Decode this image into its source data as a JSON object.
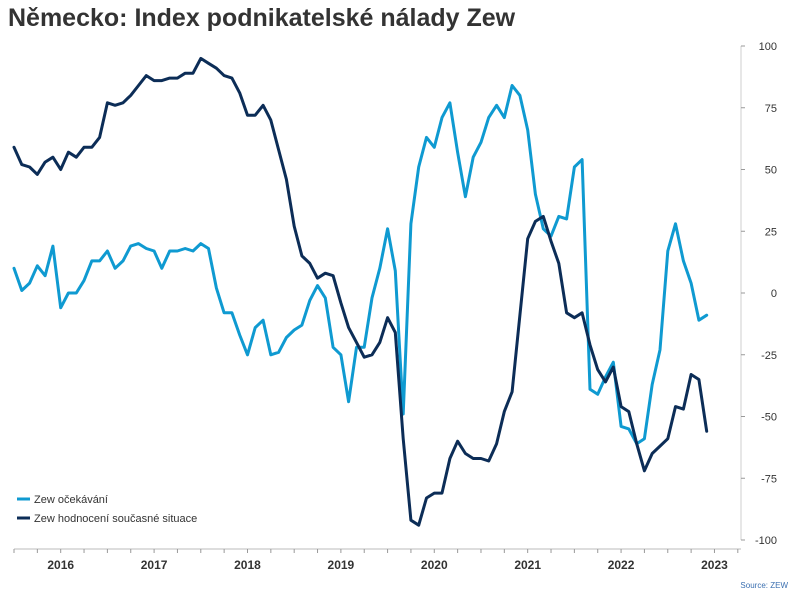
{
  "chart_data": {
    "type": "line",
    "title": "Německo: Index podnikatelské nálady Zew",
    "source": "Source: ZEW",
    "ylim": [
      -100,
      100
    ],
    "y_ticks": [
      -100,
      -75,
      -50,
      -25,
      0,
      25,
      50,
      75,
      100
    ],
    "x_ticks": [
      {
        "label": "2016",
        "x": 2016.0
      },
      {
        "label": "2017",
        "x": 2017.0
      },
      {
        "label": "2018",
        "x": 2018.0
      },
      {
        "label": "2019",
        "x": 2019.0
      },
      {
        "label": "2020",
        "x": 2020.0
      },
      {
        "label": "2021",
        "x": 2021.0
      },
      {
        "label": "2022",
        "x": 2022.0
      },
      {
        "label": "2023",
        "x": 2023.0
      }
    ],
    "grid": false,
    "legend_position": "bottom-left",
    "series": [
      {
        "name": "Zew očekávání",
        "color": "#0f9ad1",
        "points": [
          [
            2015.5,
            10
          ],
          [
            2015.583,
            1
          ],
          [
            2015.667,
            4
          ],
          [
            2015.75,
            11
          ],
          [
            2015.833,
            7
          ],
          [
            2015.917,
            19
          ],
          [
            2016.0,
            -6
          ],
          [
            2016.083,
            0
          ],
          [
            2016.167,
            0
          ],
          [
            2016.25,
            5
          ],
          [
            2016.333,
            13
          ],
          [
            2016.417,
            13
          ],
          [
            2016.5,
            17
          ],
          [
            2016.583,
            10
          ],
          [
            2016.667,
            13
          ],
          [
            2016.75,
            19
          ],
          [
            2016.833,
            20
          ],
          [
            2016.917,
            18
          ],
          [
            2017.0,
            17
          ],
          [
            2017.083,
            10
          ],
          [
            2017.167,
            17
          ],
          [
            2017.25,
            17
          ],
          [
            2017.333,
            18
          ],
          [
            2017.417,
            17
          ],
          [
            2017.5,
            20
          ],
          [
            2017.583,
            18
          ],
          [
            2017.667,
            2
          ],
          [
            2017.75,
            -8
          ],
          [
            2017.833,
            -8
          ],
          [
            2017.917,
            -17
          ],
          [
            2018.0,
            -25
          ],
          [
            2018.083,
            -14
          ],
          [
            2018.167,
            -11
          ],
          [
            2018.25,
            -25
          ],
          [
            2018.333,
            -24
          ],
          [
            2018.417,
            -18
          ],
          [
            2018.5,
            -15
          ],
          [
            2018.583,
            -13
          ],
          [
            2018.667,
            -3
          ],
          [
            2018.75,
            3
          ],
          [
            2018.833,
            -2
          ],
          [
            2018.917,
            -22
          ],
          [
            2019.0,
            -25
          ],
          [
            2019.083,
            -44
          ],
          [
            2019.167,
            -22
          ],
          [
            2019.25,
            -22
          ],
          [
            2019.333,
            -2
          ],
          [
            2019.417,
            10
          ],
          [
            2019.5,
            26
          ],
          [
            2019.583,
            9
          ],
          [
            2019.667,
            -49
          ],
          [
            2019.75,
            28
          ],
          [
            2019.833,
            51
          ],
          [
            2019.917,
            63
          ],
          [
            2020.0,
            59
          ],
          [
            2020.083,
            71
          ],
          [
            2020.167,
            77
          ],
          [
            2020.25,
            57
          ],
          [
            2020.333,
            39
          ],
          [
            2020.417,
            55
          ],
          [
            2020.5,
            61
          ],
          [
            2020.583,
            71
          ],
          [
            2020.667,
            76
          ],
          [
            2020.75,
            71
          ],
          [
            2020.833,
            84
          ],
          [
            2020.917,
            80
          ],
          [
            2021.0,
            66
          ],
          [
            2021.083,
            40
          ],
          [
            2021.167,
            26
          ],
          [
            2021.25,
            23
          ],
          [
            2021.333,
            31
          ],
          [
            2021.417,
            30
          ],
          [
            2021.5,
            51
          ],
          [
            2021.583,
            54
          ],
          [
            2021.667,
            -39
          ],
          [
            2021.75,
            -41
          ],
          [
            2021.833,
            -34
          ],
          [
            2021.917,
            -28
          ],
          [
            2022.0,
            -54
          ],
          [
            2022.083,
            -55
          ],
          [
            2022.167,
            -61
          ],
          [
            2022.25,
            -59
          ],
          [
            2022.333,
            -37
          ],
          [
            2022.417,
            -23
          ],
          [
            2022.5,
            17
          ],
          [
            2022.583,
            28
          ],
          [
            2022.667,
            13
          ],
          [
            2022.75,
            4
          ],
          [
            2022.833,
            -11
          ],
          [
            2022.917,
            -9
          ]
        ]
      },
      {
        "name": "Zew hodnocení současné situace",
        "color": "#0c2d57",
        "points": [
          [
            2015.5,
            59
          ],
          [
            2015.583,
            52
          ],
          [
            2015.667,
            51
          ],
          [
            2015.75,
            48
          ],
          [
            2015.833,
            53
          ],
          [
            2015.917,
            55
          ],
          [
            2016.0,
            50
          ],
          [
            2016.083,
            57
          ],
          [
            2016.167,
            55
          ],
          [
            2016.25,
            59
          ],
          [
            2016.333,
            59
          ],
          [
            2016.417,
            63
          ],
          [
            2016.5,
            77
          ],
          [
            2016.583,
            76
          ],
          [
            2016.667,
            77
          ],
          [
            2016.75,
            80
          ],
          [
            2016.833,
            84
          ],
          [
            2016.917,
            88
          ],
          [
            2017.0,
            86
          ],
          [
            2017.083,
            86
          ],
          [
            2017.167,
            87
          ],
          [
            2017.25,
            87
          ],
          [
            2017.333,
            89
          ],
          [
            2017.417,
            89
          ],
          [
            2017.5,
            95
          ],
          [
            2017.583,
            93
          ],
          [
            2017.667,
            91
          ],
          [
            2017.75,
            88
          ],
          [
            2017.833,
            87
          ],
          [
            2017.917,
            81
          ],
          [
            2018.0,
            72
          ],
          [
            2018.083,
            72
          ],
          [
            2018.167,
            76
          ],
          [
            2018.25,
            70
          ],
          [
            2018.333,
            58
          ],
          [
            2018.417,
            46
          ],
          [
            2018.5,
            27
          ],
          [
            2018.583,
            15
          ],
          [
            2018.667,
            12
          ],
          [
            2018.75,
            6
          ],
          [
            2018.833,
            8
          ],
          [
            2018.917,
            7
          ],
          [
            2019.0,
            -4
          ],
          [
            2019.083,
            -14
          ],
          [
            2019.167,
            -20
          ],
          [
            2019.25,
            -26
          ],
          [
            2019.333,
            -25
          ],
          [
            2019.417,
            -20
          ],
          [
            2019.5,
            -10
          ],
          [
            2019.583,
            -16
          ],
          [
            2019.667,
            -59
          ],
          [
            2019.75,
            -92
          ],
          [
            2019.833,
            -94
          ],
          [
            2019.917,
            -83
          ],
          [
            2020.0,
            -81
          ],
          [
            2020.083,
            -81
          ],
          [
            2020.167,
            -67
          ],
          [
            2020.25,
            -60
          ],
          [
            2020.333,
            -65
          ],
          [
            2020.417,
            -67
          ],
          [
            2020.5,
            -67
          ],
          [
            2020.583,
            -68
          ],
          [
            2020.667,
            -61
          ],
          [
            2020.75,
            -48
          ],
          [
            2020.833,
            -40
          ],
          [
            2020.917,
            -9
          ],
          [
            2021.0,
            22
          ],
          [
            2021.083,
            29
          ],
          [
            2021.167,
            31
          ],
          [
            2021.25,
            21
          ],
          [
            2021.333,
            12
          ],
          [
            2021.417,
            -8
          ],
          [
            2021.5,
            -10
          ],
          [
            2021.583,
            -8
          ],
          [
            2021.667,
            -21
          ],
          [
            2021.75,
            -31
          ],
          [
            2021.833,
            -36
          ],
          [
            2021.917,
            -30
          ],
          [
            2022.0,
            -46
          ],
          [
            2022.083,
            -48
          ],
          [
            2022.167,
            -61
          ],
          [
            2022.25,
            -72
          ],
          [
            2022.333,
            -65
          ],
          [
            2022.417,
            -62
          ],
          [
            2022.5,
            -59
          ],
          [
            2022.583,
            -46
          ],
          [
            2022.667,
            -47
          ],
          [
            2022.75,
            -33
          ],
          [
            2022.833,
            -35
          ],
          [
            2022.917,
            -56
          ]
        ]
      }
    ]
  }
}
